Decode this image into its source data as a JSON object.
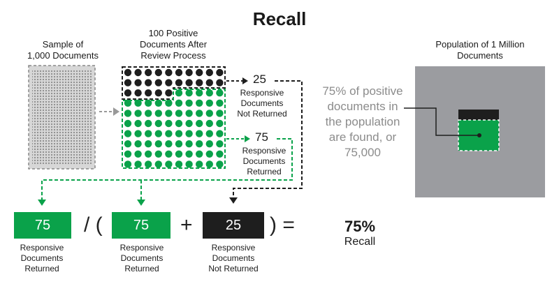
{
  "title": "Recall",
  "sample": {
    "caption_line1": "Sample of",
    "caption_line2": "1,000 Documents"
  },
  "positives": {
    "caption_line1": "100 Positive",
    "caption_line2": "Documents After",
    "caption_line3": "Review Process"
  },
  "not_returned": {
    "value": "25",
    "line1": "Responsive",
    "line2": "Documents",
    "line3": "Not Returned"
  },
  "returned": {
    "value": "75",
    "line1": "Responsive",
    "line2": "Documents",
    "line3": "Returned"
  },
  "population": {
    "caption_line1": "Population of 1 Million",
    "caption_line2": "Documents"
  },
  "callout": {
    "line1": "75% of positive",
    "line2": "documents in",
    "line3": "the population",
    "line4": "are found, or",
    "line5": "75,000"
  },
  "formula": {
    "term1": "75",
    "op_div": "/ (",
    "term2": "75",
    "op_plus": "+",
    "term3": "25",
    "op_close": ") =",
    "label1_l1": "Responsive",
    "label1_l2": "Documents",
    "label1_l3": "Returned",
    "label2_l1": "Responsive",
    "label2_l2": "Documents",
    "label2_l3": "Returned",
    "label3_l1": "Responsive",
    "label3_l2": "Documents",
    "label3_l3": "Not Returned"
  },
  "result": {
    "percent": "75%",
    "label": "Recall"
  },
  "dots": {
    "total": 100,
    "not_returned": 25
  },
  "colors": {
    "green": "#0aa24a",
    "black": "#1e1e1e",
    "gray": "#8c8c8c",
    "population": "#9b9ca0"
  }
}
